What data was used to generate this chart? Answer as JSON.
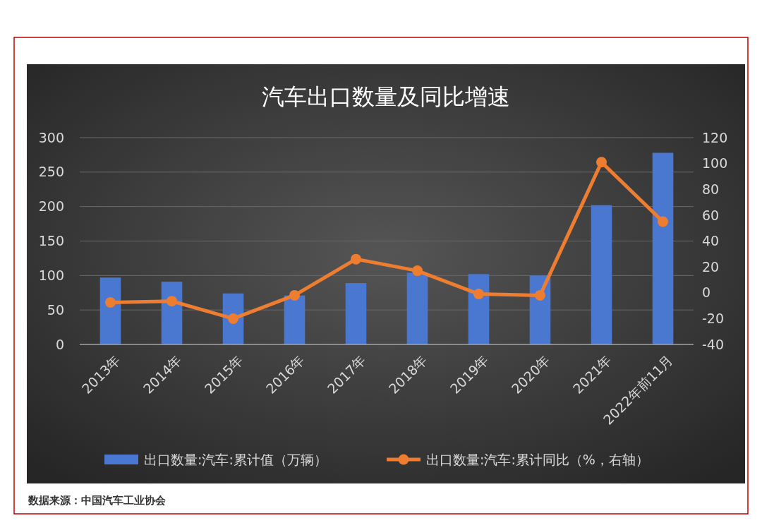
{
  "chart_data": {
    "type": "bar",
    "title": "汽车出口数量及同比增速",
    "categories": [
      "2013年",
      "2014年",
      "2015年",
      "2016年",
      "2017年",
      "2018年",
      "2019年",
      "2020年",
      "2021年",
      "2022年前11月"
    ],
    "series": [
      {
        "name": "出口数量:汽车:累计值（万辆）",
        "color": "#4a78d0",
        "values": [
          97,
          91,
          74,
          71,
          89,
          104,
          102,
          100,
          202,
          278
        ]
      },
      {
        "name": "出口数量:汽车:累计同比（%，右轴）",
        "type": "line",
        "axis": "y2",
        "color": "#ed7d31",
        "values": [
          -7.5,
          -6.5,
          -20,
          -2,
          26,
          17,
          -1,
          -2,
          101,
          55
        ]
      }
    ],
    "ylim": [
      0,
      300
    ],
    "yticks": [
      0,
      50,
      100,
      150,
      200,
      250,
      300
    ],
    "y2lim": [
      -40,
      120
    ],
    "y2ticks": [
      -40,
      -20,
      0,
      20,
      40,
      60,
      80,
      100,
      120
    ],
    "grid": "y",
    "legend": "bottom",
    "marker": "circle",
    "line_style": "solid",
    "annotations": [
      "数据来源：中国汽车工业协会"
    ]
  }
}
